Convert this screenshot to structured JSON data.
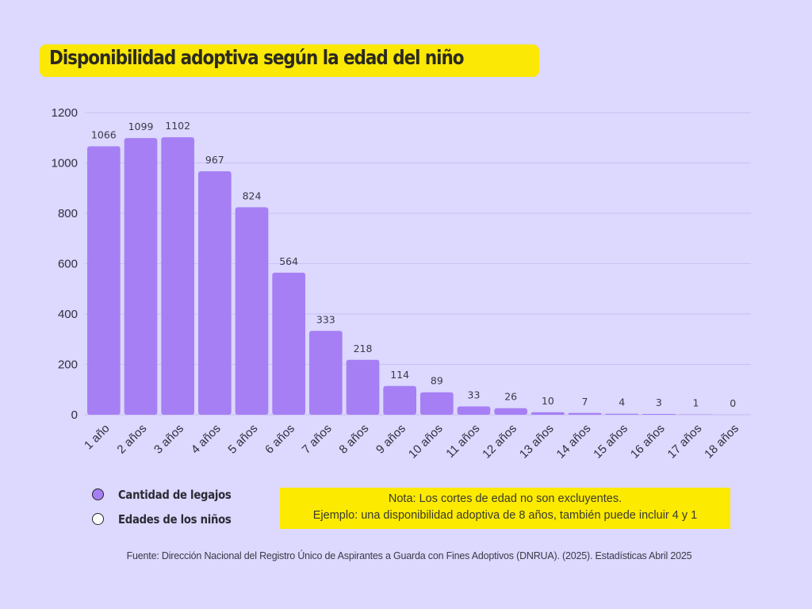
{
  "title": "Disponibilidad adoptiva según la edad del niño",
  "chart_data": {
    "type": "bar",
    "title": "Disponibilidad adoptiva según la edad del niño",
    "xlabel": "",
    "ylabel": "",
    "ylim": [
      0,
      1200
    ],
    "yticks": [
      0,
      200,
      400,
      600,
      800,
      1000,
      1200
    ],
    "grid": true,
    "categories": [
      "1 año",
      "2 años",
      "3 años",
      "4 años",
      "5 años",
      "6 años",
      "7 años",
      "8 años",
      "9 años",
      "10 años",
      "11 años",
      "12 años",
      "13 años",
      "14 años",
      "15 años",
      "16 años",
      "17 años",
      "18 años"
    ],
    "values": [
      1066,
      1099,
      1102,
      967,
      824,
      564,
      333,
      218,
      114,
      89,
      33,
      26,
      10,
      7,
      4,
      3,
      1,
      0
    ],
    "bar_color": "#a67ff4",
    "legend": [
      {
        "label": "Cantidad de legajos",
        "color": "#a67ff4"
      },
      {
        "label": "Edades de los niños",
        "color": "#ffffff"
      }
    ],
    "legend_position": "bottom-left"
  },
  "note": {
    "line1": "Nota: Los cortes de edad no son excluyentes.",
    "line2": "Ejemplo: una disponibilidad adoptiva de 8 años, también puede incluir 4 y 1"
  },
  "source": "Fuente: Dirección Nacional del Registro Único de Aspirantes a Guarda con Fines Adoptivos (DNRUA). (2025). Estadísticas Abril 2025",
  "colors": {
    "background": "#dcd8fe",
    "title_highlight": "#fbe805",
    "note_highlight": "#fcea00",
    "bar": "#a67ff4"
  }
}
